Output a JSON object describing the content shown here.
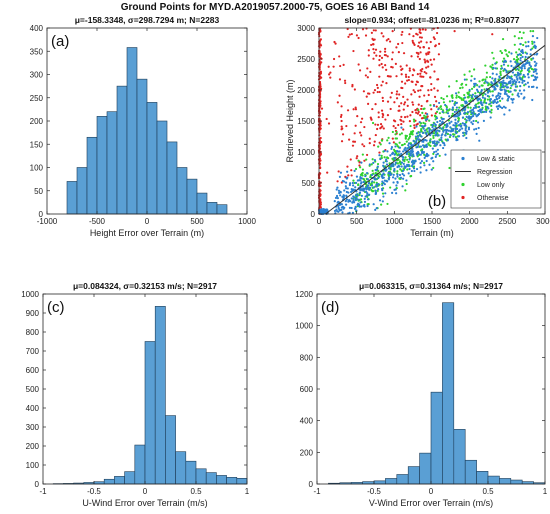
{
  "figure": {
    "title": "Ground Points for MYD.A2019057.2000-75, GOES 16 ABI Band 14"
  },
  "colors": {
    "bar_fill": "#5a9fd4",
    "bar_edge": "#1c3b55",
    "low_static": "#2a7fd0",
    "low_only": "#2fd22f",
    "otherwise": "#e02424",
    "regression": "#333333"
  },
  "chart_data": [
    {
      "id": "a",
      "type": "bar",
      "panel_label": "(a)",
      "title": "μ=-158.3348, σ=298.7294 m; N=2283",
      "xlabel": "Height Error over Terrain (m)",
      "ylabel": "",
      "xlim": [
        -1000,
        1000
      ],
      "ylim": [
        0,
        400
      ],
      "xticks": [
        -1000,
        -500,
        0,
        500,
        1000
      ],
      "yticks": [
        0,
        50,
        100,
        150,
        200,
        250,
        300,
        350,
        400
      ],
      "bin_edges": [
        -800,
        -700,
        -600,
        -500,
        -400,
        -300,
        -200,
        -100,
        0,
        100,
        200,
        300,
        400,
        500,
        600,
        700,
        800
      ],
      "values": [
        70,
        100,
        165,
        210,
        220,
        275,
        358,
        290,
        240,
        200,
        155,
        100,
        75,
        45,
        25,
        20
      ]
    },
    {
      "id": "b",
      "type": "scatter",
      "panel_label": "(b)",
      "title": "slope=0.934; offset=-81.0236 m; R²=0.83077",
      "xlabel": "Terrain (m)",
      "ylabel": "Retrieved Height (m)",
      "xlim": [
        0,
        3000
      ],
      "ylim": [
        0,
        3000
      ],
      "xticks": [
        0,
        500,
        1000,
        1500,
        2000,
        2500,
        3000
      ],
      "yticks": [
        0,
        500,
        1000,
        1500,
        2000,
        2500,
        3000
      ],
      "regression": {
        "slope": 0.934,
        "offset": -81.0236
      },
      "legend": [
        "Low & static",
        "Regression",
        "Low only",
        "Otherwise"
      ],
      "legend_position": "bottom-right",
      "series": [
        {
          "name": "Low & static",
          "points": [
            [
              600,
              400
            ],
            [
              900,
              850
            ],
            [
              1200,
              1000
            ],
            [
              1500,
              1350
            ],
            [
              1800,
              1600
            ],
            [
              2100,
              1900
            ],
            [
              2400,
              2200
            ],
            [
              2700,
              2450
            ],
            [
              1000,
              700
            ],
            [
              1300,
              1300
            ],
            [
              1700,
              1450
            ],
            [
              2000,
              2000
            ]
          ]
        },
        {
          "name": "Low only",
          "points": [
            [
              700,
              800
            ],
            [
              1100,
              1300
            ],
            [
              1400,
              1700
            ],
            [
              1700,
              1900
            ],
            [
              2000,
              2300
            ],
            [
              2300,
              2600
            ],
            [
              1600,
              1200
            ],
            [
              1900,
              2100
            ],
            [
              2200,
              1800
            ]
          ]
        },
        {
          "name": "Otherwise",
          "points": [
            [
              0,
              2900
            ],
            [
              0,
              2000
            ],
            [
              0,
              1000
            ],
            [
              0,
              300
            ],
            [
              200,
              2500
            ],
            [
              300,
              1500
            ],
            [
              400,
              1200
            ],
            [
              250,
              1800
            ],
            [
              150,
              2200
            ],
            [
              500,
              900
            ],
            [
              900,
              2800
            ],
            [
              1200,
              2900
            ],
            [
              1800,
              2950
            ],
            [
              2300,
              2900
            ],
            [
              350,
              600
            ]
          ]
        }
      ]
    },
    {
      "id": "c",
      "type": "bar",
      "panel_label": "(c)",
      "title": "μ=0.084324, σ=0.32153 m/s; N=2917",
      "xlabel": "U-Wind Error over Terrain (m/s)",
      "ylabel": "",
      "xlim": [
        -1,
        1
      ],
      "ylim": [
        0,
        1000
      ],
      "xticks": [
        -1,
        -0.5,
        0,
        0.5,
        1
      ],
      "yticks": [
        0,
        100,
        200,
        300,
        400,
        500,
        600,
        700,
        800,
        900,
        1000
      ],
      "bin_edges": [
        -0.9,
        -0.8,
        -0.7,
        -0.6,
        -0.5,
        -0.4,
        -0.3,
        -0.2,
        -0.1,
        0,
        0.1,
        0.2,
        0.3,
        0.4,
        0.5,
        0.6,
        0.7,
        0.8,
        0.9,
        1.0
      ],
      "values": [
        2,
        3,
        5,
        8,
        12,
        25,
        40,
        65,
        205,
        750,
        935,
        360,
        170,
        120,
        80,
        60,
        45,
        35,
        30
      ]
    },
    {
      "id": "d",
      "type": "bar",
      "panel_label": "(d)",
      "title": "μ=0.063315, σ=0.31364 m/s; N=2917",
      "xlabel": "V-Wind Error over Terrain (m/s)",
      "ylabel": "",
      "xlim": [
        -1,
        1
      ],
      "ylim": [
        0,
        1200
      ],
      "xticks": [
        -1,
        -0.5,
        0,
        0.5,
        1
      ],
      "yticks": [
        0,
        200,
        400,
        600,
        800,
        1000,
        1200
      ],
      "bin_edges": [
        -0.9,
        -0.8,
        -0.7,
        -0.6,
        -0.5,
        -0.4,
        -0.3,
        -0.2,
        -0.1,
        0,
        0.1,
        0.2,
        0.3,
        0.4,
        0.5,
        0.6,
        0.7,
        0.8,
        0.9,
        1.0
      ],
      "values": [
        5,
        8,
        10,
        15,
        20,
        35,
        60,
        110,
        195,
        580,
        1145,
        345,
        150,
        80,
        50,
        35,
        25,
        15,
        8
      ]
    }
  ]
}
